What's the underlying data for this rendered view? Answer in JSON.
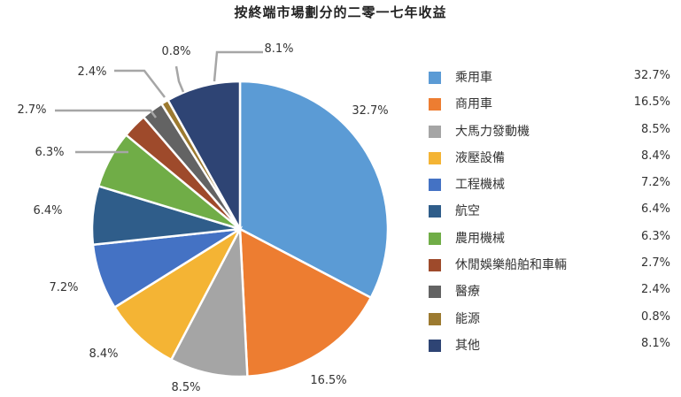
{
  "chart_data": {
    "type": "pie",
    "title": "按終端市場劃分的二零一七年收益",
    "legend_position": "right",
    "slices": [
      {
        "label": "乘用車",
        "value": 32.7,
        "display": "32.7%",
        "color": "#5B9BD5"
      },
      {
        "label": "商用車",
        "value": 16.5,
        "display": "16.5%",
        "color": "#ED7D31"
      },
      {
        "label": "大馬力發動機",
        "value": 8.5,
        "display": "8.5%",
        "color": "#A5A5A5"
      },
      {
        "label": "液壓設備",
        "value": 8.4,
        "display": "8.4%",
        "color": "#F4B434"
      },
      {
        "label": "工程機械",
        "value": 7.2,
        "display": "7.2%",
        "color": "#4472C4"
      },
      {
        "label": "航空",
        "value": 6.4,
        "display": "6.4%",
        "color": "#2F5D8A"
      },
      {
        "label": "農用機械",
        "value": 6.3,
        "display": "6.3%",
        "color": "#70AD47"
      },
      {
        "label": "休閒娛樂船舶和車輛",
        "value": 2.7,
        "display": "2.7%",
        "color": "#9E4A2B"
      },
      {
        "label": "醫療",
        "value": 2.4,
        "display": "2.4%",
        "color": "#636363"
      },
      {
        "label": "能源",
        "value": 0.8,
        "display": "0.8%",
        "color": "#9C7A30"
      },
      {
        "label": "其他",
        "value": 8.1,
        "display": "8.1%",
        "color": "#2E4474"
      }
    ]
  }
}
